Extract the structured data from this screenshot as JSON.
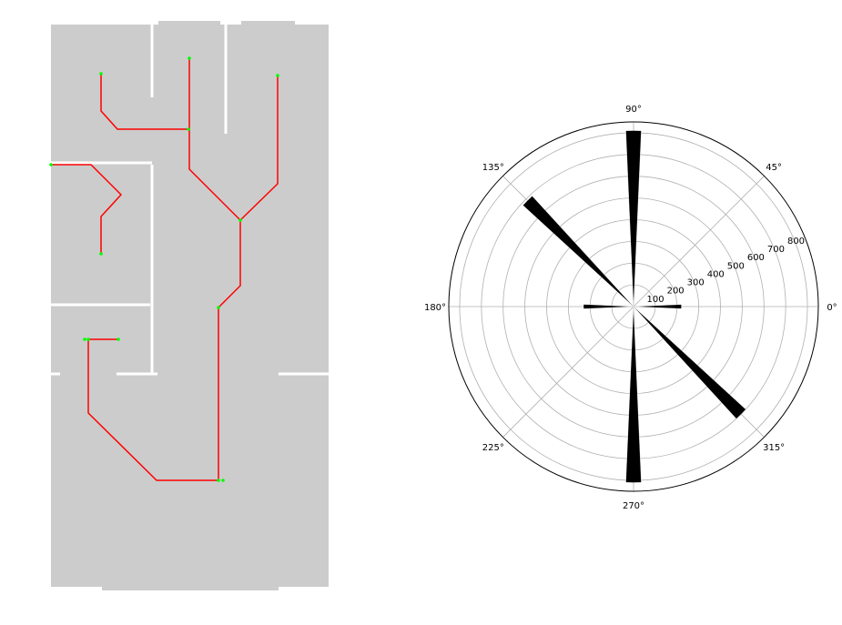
{
  "colors": {
    "floor": "#cccccc",
    "wall": "#ffffff",
    "path": "#ff0000",
    "waypoint": "#00ff00",
    "bar": "#000000",
    "grid": "#b0b0b0",
    "outline": "#000000"
  },
  "chart_data": [
    {
      "type": "plan",
      "description_units": "image",
      "paths": [
        {
          "points": [
            [
              111,
              81
            ],
            [
              111,
              122
            ],
            [
              129,
              142
            ],
            [
              207,
              142
            ]
          ]
        },
        {
          "points": [
            [
              208,
              64
            ],
            [
              208,
              142
            ],
            [
              208,
              186
            ],
            [
              264,
              242
            ],
            [
              305,
              202
            ],
            [
              305,
              83
            ]
          ]
        },
        {
          "points": [
            [
              56,
              181
            ],
            [
              100,
              181
            ],
            [
              133,
              214
            ],
            [
              111,
              238
            ],
            [
              111,
              279
            ]
          ]
        },
        {
          "points": [
            [
              264,
              242
            ],
            [
              264,
              314
            ],
            [
              240,
              338
            ],
            [
              240,
              528
            ],
            [
              172,
              528
            ],
            [
              97,
              454
            ],
            [
              97,
              373
            ],
            [
              130,
              373
            ]
          ]
        }
      ],
      "waypoints": [
        [
          111,
          81
        ],
        [
          208,
          64
        ],
        [
          305,
          83
        ],
        [
          207,
          142
        ],
        [
          56,
          181
        ],
        [
          264,
          242
        ],
        [
          111,
          279
        ],
        [
          240,
          338
        ],
        [
          93,
          373
        ],
        [
          97,
          373
        ],
        [
          130,
          373
        ],
        [
          240,
          528
        ],
        [
          245,
          528
        ]
      ]
    },
    {
      "type": "polar-bar",
      "theta_tick_labels": [
        "0°",
        "45°",
        "90°",
        "135°",
        "180°",
        "225°",
        "270°",
        "315°"
      ],
      "theta_tick_degrees": [
        0,
        45,
        90,
        135,
        180,
        225,
        270,
        315
      ],
      "r_tick_labels": [
        "100",
        "200",
        "300",
        "400",
        "500",
        "600",
        "700",
        "800"
      ],
      "r_ticks": [
        100,
        200,
        300,
        400,
        500,
        600,
        700,
        800
      ],
      "rlim": [
        0,
        850
      ],
      "r_label_angle": 22.5,
      "grid": true,
      "bars": [
        {
          "theta": 0,
          "value": 220
        },
        {
          "theta": 90,
          "value": 810
        },
        {
          "theta": 135,
          "value": 690
        },
        {
          "theta": 180,
          "value": 230
        },
        {
          "theta": 270,
          "value": 810
        },
        {
          "theta": 315,
          "value": 700
        }
      ],
      "bar_width_degrees": 5
    }
  ]
}
